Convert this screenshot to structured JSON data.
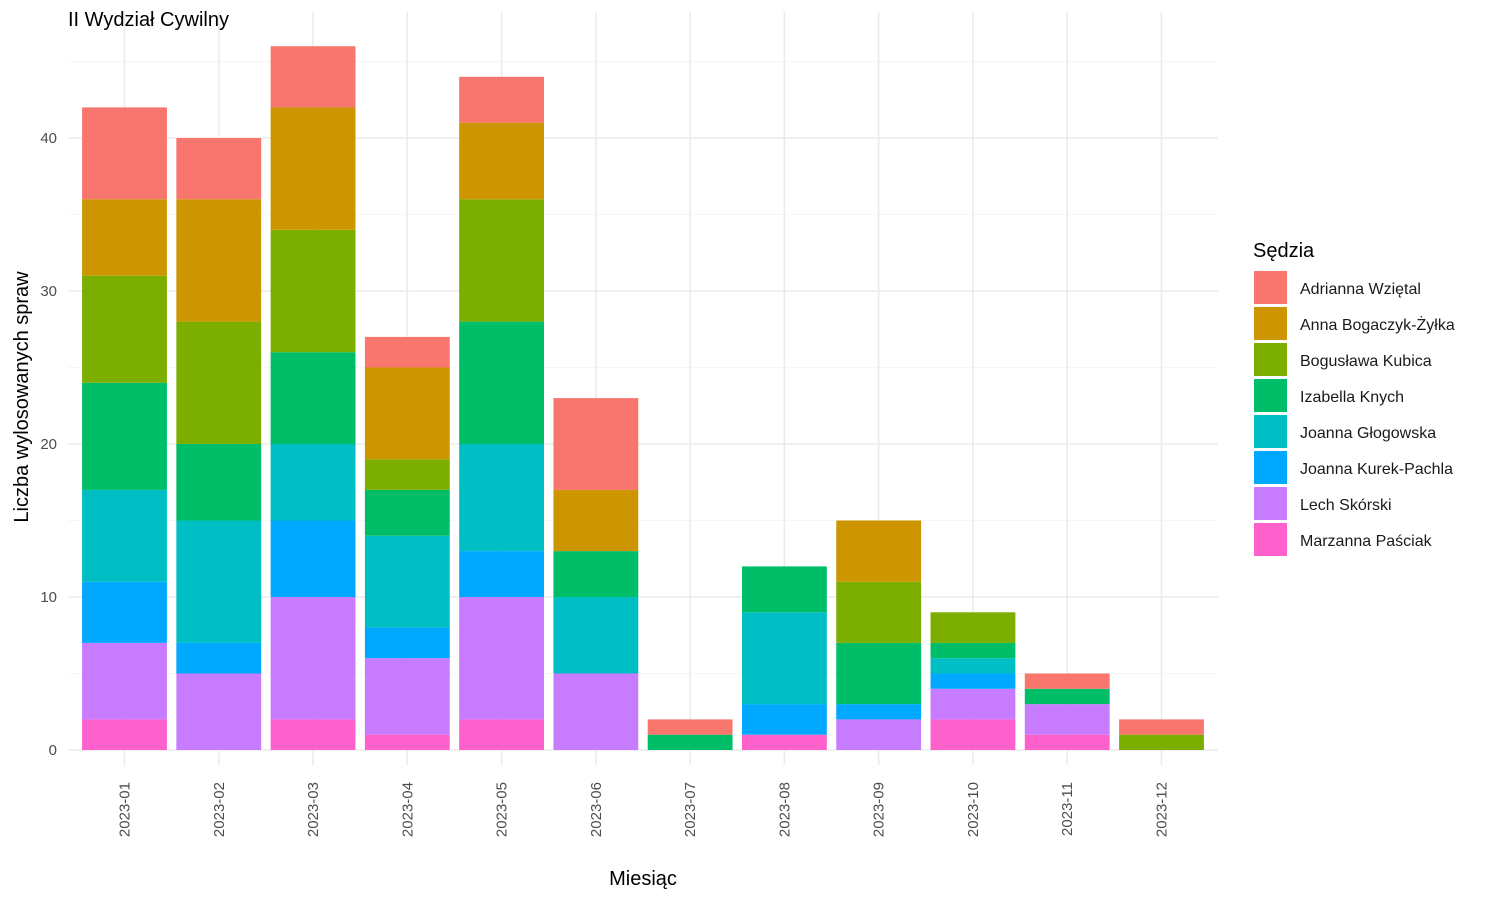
{
  "chart_data": {
    "type": "bar",
    "stacked": true,
    "title": "II Wydział Cywilny",
    "xlabel": "Miesiąc",
    "ylabel": "Liczba wylosowanych spraw",
    "ylim": [
      0,
      46
    ],
    "yticks": [
      0,
      10,
      20,
      30,
      40
    ],
    "grid": true,
    "legend_title": "Sędzia",
    "legend_position": "right",
    "categories": [
      "2023-01",
      "2023-02",
      "2023-03",
      "2023-04",
      "2023-05",
      "2023-06",
      "2023-07",
      "2023-08",
      "2023-09",
      "2023-10",
      "2023-11",
      "2023-12"
    ],
    "series": [
      {
        "name": "Marzanna Paściak",
        "color": "#FF61CC",
        "values": [
          2,
          0,
          2,
          1,
          2,
          0,
          0,
          1,
          0,
          2,
          1,
          0
        ]
      },
      {
        "name": "Lech Skórski",
        "color": "#C77CFF",
        "values": [
          5,
          5,
          8,
          5,
          8,
          5,
          0,
          0,
          2,
          2,
          2,
          0
        ]
      },
      {
        "name": "Joanna Kurek-Pachla",
        "color": "#00A9FF",
        "values": [
          4,
          2,
          5,
          2,
          3,
          0,
          0,
          2,
          1,
          1,
          0,
          0
        ]
      },
      {
        "name": "Joanna Głogowska",
        "color": "#00BFC4",
        "values": [
          6,
          8,
          5,
          6,
          7,
          5,
          0,
          6,
          0,
          1,
          0,
          0
        ]
      },
      {
        "name": "Izabella Knych",
        "color": "#00BE67",
        "values": [
          7,
          5,
          6,
          3,
          8,
          3,
          1,
          3,
          4,
          1,
          1,
          0
        ]
      },
      {
        "name": "Bogusława Kubica",
        "color": "#7CAE00",
        "values": [
          7,
          8,
          8,
          2,
          8,
          0,
          0,
          0,
          4,
          2,
          0,
          1
        ]
      },
      {
        "name": "Anna Bogaczyk-Żyłka",
        "color": "#CD9600",
        "values": [
          5,
          8,
          8,
          6,
          5,
          4,
          0,
          0,
          4,
          0,
          0,
          0
        ]
      },
      {
        "name": "Adrianna Wziętal",
        "color": "#F8766D",
        "values": [
          6,
          4,
          4,
          2,
          3,
          6,
          1,
          0,
          0,
          0,
          1,
          1
        ]
      }
    ],
    "legend_order": [
      "Adrianna Wziętal",
      "Anna Bogaczyk-Żyłka",
      "Bogusława Kubica",
      "Izabella Knych",
      "Joanna Głogowska",
      "Joanna Kurek-Pachla",
      "Lech Skórski",
      "Marzanna Paściak"
    ]
  }
}
